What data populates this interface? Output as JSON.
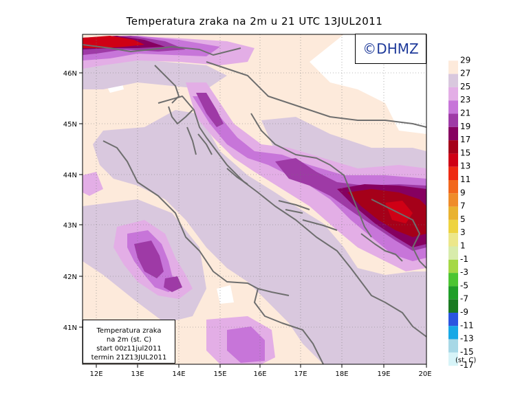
{
  "title": "Temperatura zraka na 2m u 21 UTC 13JUL2011",
  "watermark": "©DHMZ",
  "info": {
    "line1": "Temperatura zraka",
    "line2": "na 2m (st. C)",
    "line3": "start 00z11jul2011",
    "line4": "termin 21Z13JUL2011"
  },
  "lon_labels": [
    "12E",
    "13E",
    "14E",
    "15E",
    "16E",
    "17E",
    "18E",
    "19E",
    "20E"
  ],
  "lat_labels": [
    "46N",
    "45N",
    "44N",
    "43N",
    "42N",
    "41N"
  ],
  "legend": {
    "levels": [
      "29",
      "27",
      "25",
      "23",
      "21",
      "19",
      "17",
      "15",
      "13",
      "11",
      "9",
      "7",
      "5",
      "3",
      "1",
      "-1",
      "-3",
      "-5",
      "-7",
      "-9",
      "-11",
      "-13",
      "-15",
      "-17"
    ],
    "colors": [
      "#ffffff",
      "#fdeadb",
      "#d9c8de",
      "#e3aee6",
      "#c775d9",
      "#9e3aa6",
      "#860060",
      "#a50019",
      "#cf0015",
      "#ee2a12",
      "#f2671c",
      "#ef8c2a",
      "#e9b230",
      "#eed340",
      "#ece78a",
      "#d8ecab",
      "#a5d845",
      "#4cc532",
      "#1f9e28",
      "#1a7a22",
      "#2a55e0",
      "#17a8e6",
      "#a7d8e6",
      "#d7f4f8"
    ],
    "unit": "(st. C)"
  },
  "map": {
    "lon_range": [
      11.7,
      20.0
    ],
    "lat_range": [
      40.3,
      46.75
    ],
    "fill_colors": {
      "base": "#fdeadb",
      "sea": "#d9c8de",
      "warm": "#e3aee6",
      "warmer": "#c775d9",
      "hot": "#9e3aa6",
      "hotter": "#860060",
      "hottest": "#a50019",
      "extreme": "#cf0015",
      "cool": "#ffffff",
      "coast": "#6e6e6e"
    }
  }
}
